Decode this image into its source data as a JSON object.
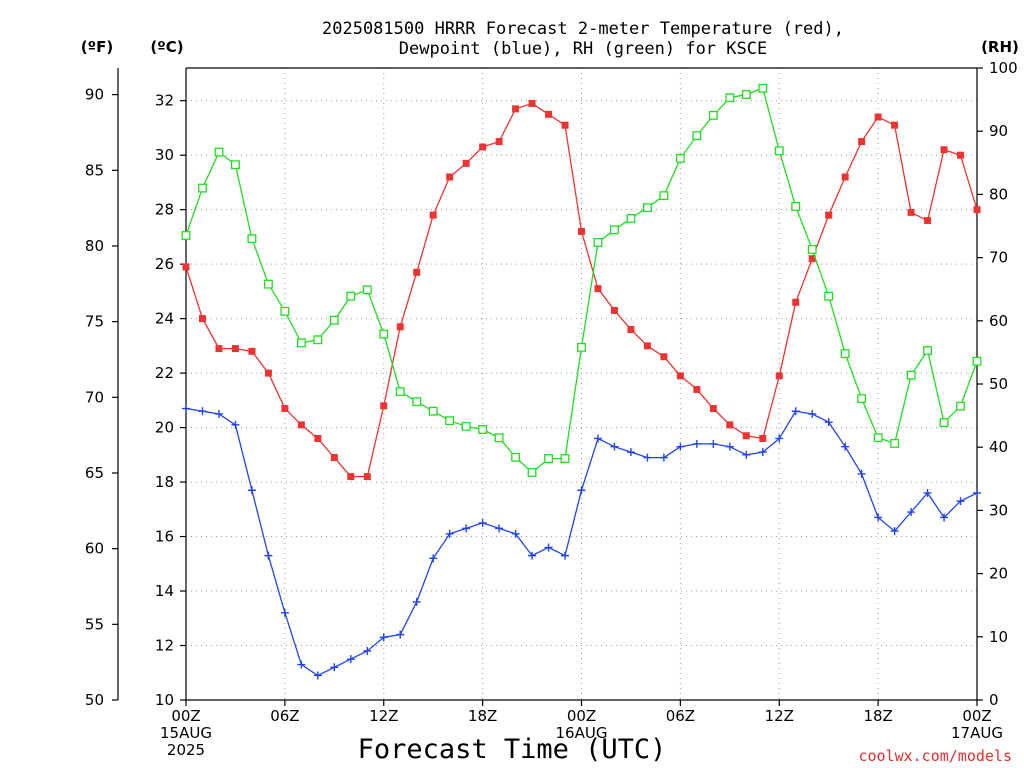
{
  "title": {
    "line1": "2025081500 HRRR Forecast 2-meter Temperature (red),",
    "line2": "Dewpoint (blue), RH (green) for KSCE"
  },
  "units": {
    "left_outer": "(ºF)",
    "left_inner": "(ºC)",
    "right": "(RH)"
  },
  "credit": "coolwx.com/models",
  "colors": {
    "temp": "#ee3333",
    "dewpoint": "#2244ee",
    "rh": "#22dd22",
    "frame": "#000000",
    "credit": "#e03030"
  },
  "chart_data": {
    "type": "line",
    "title": "2025081500 HRRR Forecast 2-meter Temperature (red), Dewpoint (blue), RH (green) for KSCE",
    "xlabel": "Forecast Time (UTC)",
    "x_unit": "forecast hour",
    "xlim": [
      0,
      48
    ],
    "x_tick_labels": [
      {
        "hour": 0,
        "lines": [
          "00Z",
          "15AUG",
          "2025"
        ]
      },
      {
        "hour": 6,
        "lines": [
          "06Z"
        ]
      },
      {
        "hour": 12,
        "lines": [
          "12Z"
        ]
      },
      {
        "hour": 18,
        "lines": [
          "18Z"
        ]
      },
      {
        "hour": 24,
        "lines": [
          "00Z",
          "16AUG"
        ]
      },
      {
        "hour": 30,
        "lines": [
          "06Z"
        ]
      },
      {
        "hour": 36,
        "lines": [
          "12Z"
        ]
      },
      {
        "hour": 42,
        "lines": [
          "18Z"
        ]
      },
      {
        "hour": 48,
        "lines": [
          "00Z",
          "17AUG"
        ]
      }
    ],
    "y_celsius": {
      "label": "(ºC)",
      "ylim": [
        10,
        33.2
      ],
      "ticks": [
        10,
        12,
        14,
        16,
        18,
        20,
        22,
        24,
        26,
        28,
        30,
        32
      ]
    },
    "y_fahrenheit": {
      "label": "(ºF)",
      "ticks": [
        50,
        55,
        60,
        65,
        70,
        75,
        80,
        85,
        90
      ]
    },
    "y_rh": {
      "label": "(RH)",
      "ylim": [
        0,
        100
      ],
      "ticks": [
        0,
        10,
        20,
        30,
        40,
        50,
        60,
        70,
        80,
        90,
        100
      ]
    },
    "grid": true,
    "x": [
      0,
      1,
      2,
      3,
      4,
      5,
      6,
      7,
      8,
      9,
      10,
      11,
      12,
      13,
      14,
      15,
      16,
      17,
      18,
      19,
      20,
      21,
      22,
      23,
      24,
      25,
      26,
      27,
      28,
      29,
      30,
      31,
      32,
      33,
      34,
      35,
      36,
      37,
      38,
      39,
      40,
      41,
      42,
      43,
      44,
      45,
      46,
      47,
      48
    ],
    "series": [
      {
        "name": "Temperature",
        "axis": "celsius",
        "marker": "filled-square",
        "color": "#ee3333",
        "values": [
          25.9,
          24.0,
          22.9,
          22.9,
          22.8,
          22.0,
          20.7,
          20.1,
          19.6,
          18.9,
          18.2,
          18.2,
          20.8,
          23.7,
          25.7,
          27.8,
          29.2,
          29.7,
          30.3,
          30.5,
          31.7,
          31.9,
          31.5,
          31.1,
          27.2,
          25.1,
          24.3,
          23.6,
          23.0,
          22.6,
          21.9,
          21.4,
          20.7,
          20.1,
          19.7,
          19.6,
          21.9,
          24.6,
          26.2,
          27.8,
          29.2,
          30.5,
          31.4,
          31.1,
          27.9,
          27.6,
          30.2,
          30.0,
          28.0
        ]
      },
      {
        "name": "Dewpoint",
        "axis": "celsius",
        "marker": "plus",
        "color": "#2244ee",
        "values": [
          20.7,
          20.6,
          20.5,
          20.1,
          17.7,
          15.3,
          13.2,
          11.3,
          10.9,
          11.2,
          11.5,
          11.8,
          12.3,
          12.4,
          13.6,
          15.2,
          16.1,
          16.3,
          16.5,
          16.3,
          16.1,
          15.3,
          15.6,
          15.3,
          17.7,
          19.6,
          19.3,
          19.1,
          18.9,
          18.9,
          19.3,
          19.4,
          19.4,
          19.3,
          19.0,
          19.1,
          19.6,
          20.6,
          20.5,
          20.2,
          19.3,
          18.3,
          16.7,
          16.2,
          16.9,
          17.6,
          16.7,
          17.3,
          17.6
        ]
      },
      {
        "name": "RH",
        "axis": "rh",
        "marker": "open-square",
        "color": "#22dd22",
        "values": [
          73.5,
          81.0,
          86.7,
          84.7,
          73.0,
          65.8,
          61.5,
          56.5,
          57.0,
          60.1,
          63.9,
          64.9,
          57.9,
          48.8,
          47.2,
          45.7,
          44.2,
          43.3,
          42.8,
          41.5,
          38.4,
          36.0,
          38.2,
          38.2,
          55.8,
          72.4,
          74.4,
          76.2,
          77.9,
          79.8,
          85.7,
          89.3,
          92.5,
          95.3,
          95.8,
          96.8,
          86.9,
          78.1,
          71.3,
          63.9,
          54.8,
          47.7,
          41.5,
          40.6,
          51.4,
          55.3,
          43.9,
          46.5,
          53.6
        ]
      }
    ]
  }
}
